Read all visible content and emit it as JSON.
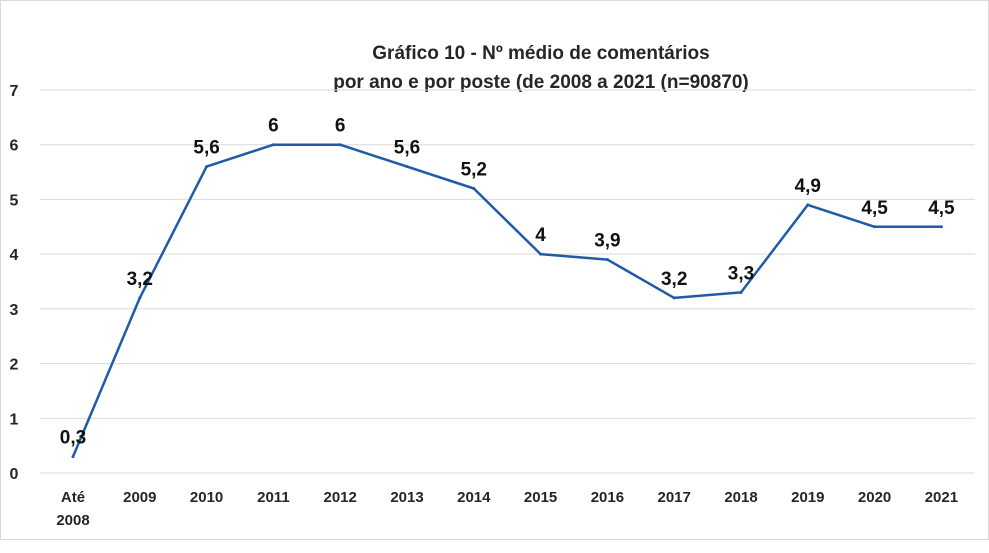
{
  "chart_data": {
    "type": "line",
    "title_line1": "Gráfico 10 - Nº médio de comentários",
    "title_line2": "por ano e por poste (de 2008 a 2021  (n=90870)",
    "categories": [
      [
        "Até",
        "2008"
      ],
      [
        "2009"
      ],
      [
        "2010"
      ],
      [
        "2011"
      ],
      [
        "2012"
      ],
      [
        "2013"
      ],
      [
        "2014"
      ],
      [
        "2015"
      ],
      [
        "2016"
      ],
      [
        "2017"
      ],
      [
        "2018"
      ],
      [
        "2019"
      ],
      [
        "2020"
      ],
      [
        "2021"
      ]
    ],
    "series": [
      {
        "values": [
          0.3,
          3.2,
          5.6,
          6,
          6,
          5.6,
          5.2,
          4,
          3.9,
          3.2,
          3.3,
          4.9,
          4.5,
          4.5
        ],
        "labels": [
          "0,3",
          "3,2",
          "5,6",
          "6",
          "6",
          "5,6",
          "5,2",
          "4",
          "3,9",
          "3,2",
          "3,3",
          "4,9",
          "4,5",
          "4,5"
        ]
      }
    ],
    "yticks": [
      0,
      1,
      2,
      3,
      4,
      5,
      6,
      7
    ],
    "ylim": [
      0,
      7
    ],
    "grid": true,
    "legend": "none",
    "colors": {
      "line": "#1f5ba6",
      "grid": "#d9d9d9",
      "text": "#262626"
    }
  }
}
